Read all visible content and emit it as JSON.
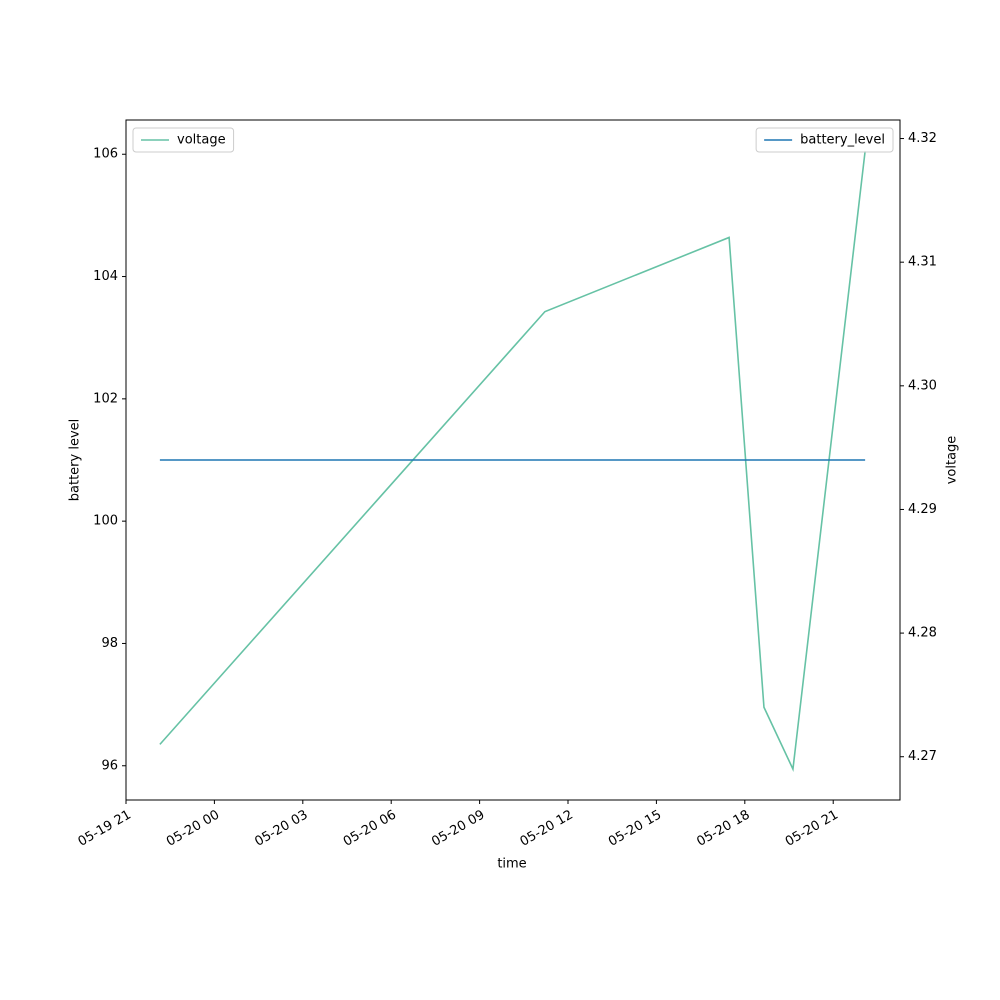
{
  "chart_data": {
    "type": "line",
    "xlabel": "time",
    "ylabel": "battery level",
    "y2label": "voltage",
    "x": [
      "05-19 22:09",
      "05-20 11:13",
      "05-20 17:28",
      "05-20 18:39",
      "05-20 19:38",
      "05-20 22:05"
    ],
    "series": [
      {
        "name": "voltage",
        "color": "#66c2a5",
        "axis": "y2",
        "legend": "upper left",
        "values": [
          4.271,
          4.306,
          4.312,
          4.274,
          4.269,
          4.319
        ]
      },
      {
        "name": "battery_level",
        "color": "#1f77b4",
        "axis": "y",
        "legend": "upper right",
        "values": [
          101,
          101,
          101,
          101,
          101,
          101
        ]
      }
    ],
    "xlim": [
      "05-19 21:00",
      "05-20 23:16"
    ],
    "xticks": [
      {
        "value": "05-19 21:00",
        "label": "05-19 21"
      },
      {
        "value": "05-20 00:00",
        "label": "05-20 00"
      },
      {
        "value": "05-20 03:00",
        "label": "05-20 03"
      },
      {
        "value": "05-20 06:00",
        "label": "05-20 06"
      },
      {
        "value": "05-20 09:00",
        "label": "05-20 09"
      },
      {
        "value": "05-20 12:00",
        "label": "05-20 12"
      },
      {
        "value": "05-20 15:00",
        "label": "05-20 15"
      },
      {
        "value": "05-20 18:00",
        "label": "05-20 18"
      },
      {
        "value": "05-20 21:00",
        "label": "05-20 21"
      }
    ],
    "ylim": [
      95.44,
      106.56
    ],
    "yticks": [
      96,
      98,
      100,
      102,
      104,
      106
    ],
    "y2lim": [
      4.2665,
      4.3215
    ],
    "y2ticks": [
      {
        "value": 4.27,
        "label": "4.27"
      },
      {
        "value": 4.28,
        "label": "4.28"
      },
      {
        "value": 4.29,
        "label": "4.29"
      },
      {
        "value": 4.3,
        "label": "4.30"
      },
      {
        "value": 4.31,
        "label": "4.31"
      },
      {
        "value": 4.32,
        "label": "4.32"
      }
    ],
    "grid": false
  }
}
